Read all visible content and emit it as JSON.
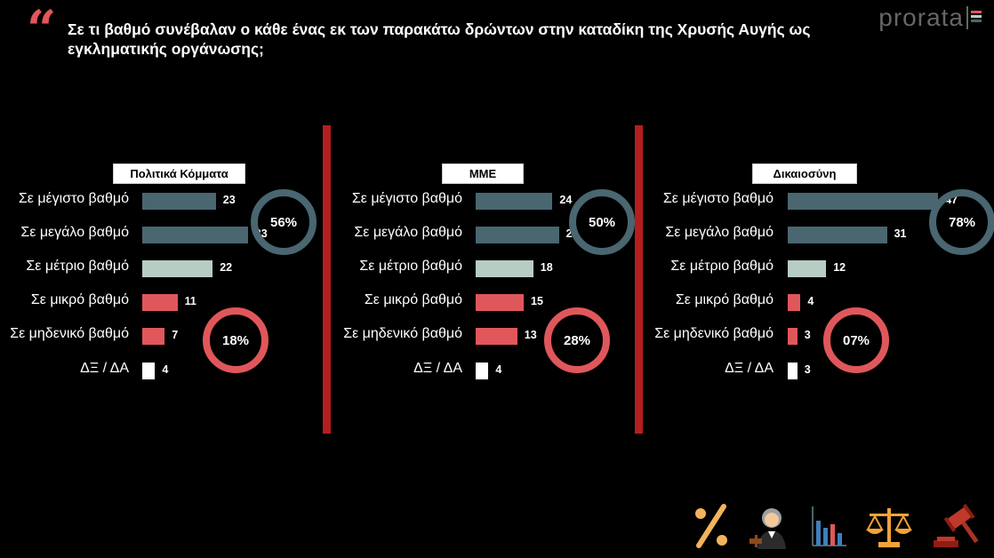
{
  "title": "Σε τι βαθμό συνέβαλαν ο κάθε ένας εκ των παρακάτω δρώντων στην καταδίκη της Χρυσής Αυγής ως εγκληματικής οργάνωσης;",
  "logo": "prorata",
  "colors": {
    "high": "#4a6670",
    "medium": "#b7cdc4",
    "low": "#e0575b",
    "dk": "#ffffff",
    "divider": "#b61d1f"
  },
  "icons": [
    "percent-icon",
    "judge-icon",
    "bar-chart-icon",
    "scales-icon",
    "gavel-icon"
  ],
  "chart_data": [
    {
      "type": "bar",
      "title": "Πολιτικά Κόμματα",
      "categories": [
        "Σε μέγιστο βαθμό",
        "Σε μεγάλο βαθμό",
        "Σε μέτριο βαθμό",
        "Σε μικρό βαθμό",
        "Σε μηδενικό βαθμό",
        "ΔΞ / ΔΑ"
      ],
      "values": [
        23,
        33,
        22,
        11,
        7,
        4
      ],
      "positive_total": "56%",
      "negative_total": "18%"
    },
    {
      "type": "bar",
      "title": "ΜΜΕ",
      "categories": [
        "Σε μέγιστο βαθμό",
        "Σε μεγάλο βαθμό",
        "Σε μέτριο βαθμό",
        "Σε μικρό βαθμό",
        "Σε μηδενικό βαθμό",
        "ΔΞ / ΔΑ"
      ],
      "values": [
        24,
        26,
        18,
        15,
        13,
        4
      ],
      "positive_total": "50%",
      "negative_total": "28%"
    },
    {
      "type": "bar",
      "title": "Δικαιοσύνη",
      "categories": [
        "Σε μέγιστο βαθμό",
        "Σε μεγάλο βαθμό",
        "Σε μέτριο βαθμό",
        "Σε μικρό βαθμό",
        "Σε μηδενικό βαθμό",
        "ΔΞ / ΔΑ"
      ],
      "values": [
        47,
        31,
        12,
        4,
        3,
        3
      ],
      "positive_total": "78%",
      "negative_total": "07%"
    }
  ]
}
